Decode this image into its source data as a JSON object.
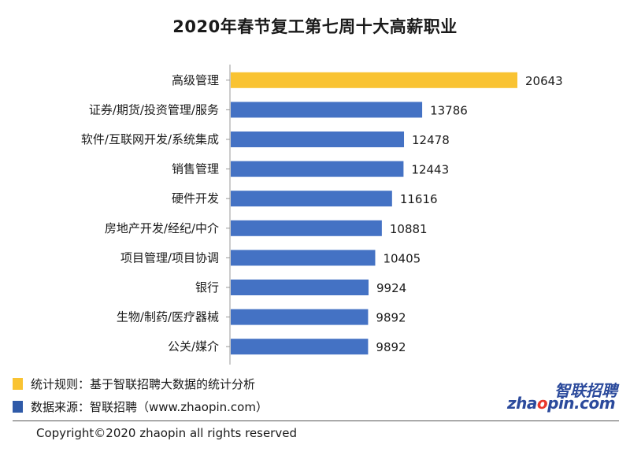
{
  "chart_data": {
    "type": "bar",
    "orientation": "horizontal",
    "title": "2020年春节复工第七周十大高薪职业",
    "categories": [
      "高级管理",
      "证券/期货/投资管理/服务",
      "软件/互联网开发/系统集成",
      "销售管理",
      "硬件开发",
      "房地产开发/经纪/中介",
      "项目管理/项目协调",
      "银行",
      "生物/制药/医疗器械",
      "公关/媒介"
    ],
    "values": [
      20643,
      13786,
      12478,
      12443,
      11616,
      10881,
      10405,
      9924,
      9892,
      9892
    ],
    "highlight_index": 0,
    "colors": {
      "bar": "#4472c4",
      "highlight": "#f9c332",
      "axis": "#999999"
    },
    "xlim": [
      0,
      20643
    ],
    "grid": false,
    "data_labels": true
  },
  "notes": [
    {
      "text": "统计规则：基于智联招聘大数据的统计分析",
      "color": "#f9c332"
    },
    {
      "text": "数据来源：智联招聘（www.zhaopin.com）",
      "color": "#2f5aa8"
    }
  ],
  "logo": {
    "cn": "智联招聘",
    "en_prefix": "zha",
    "en_o": "o",
    "en_suffix": "pin.com"
  },
  "copyright": "Copyright©2020 zhaopin all rights reserved"
}
